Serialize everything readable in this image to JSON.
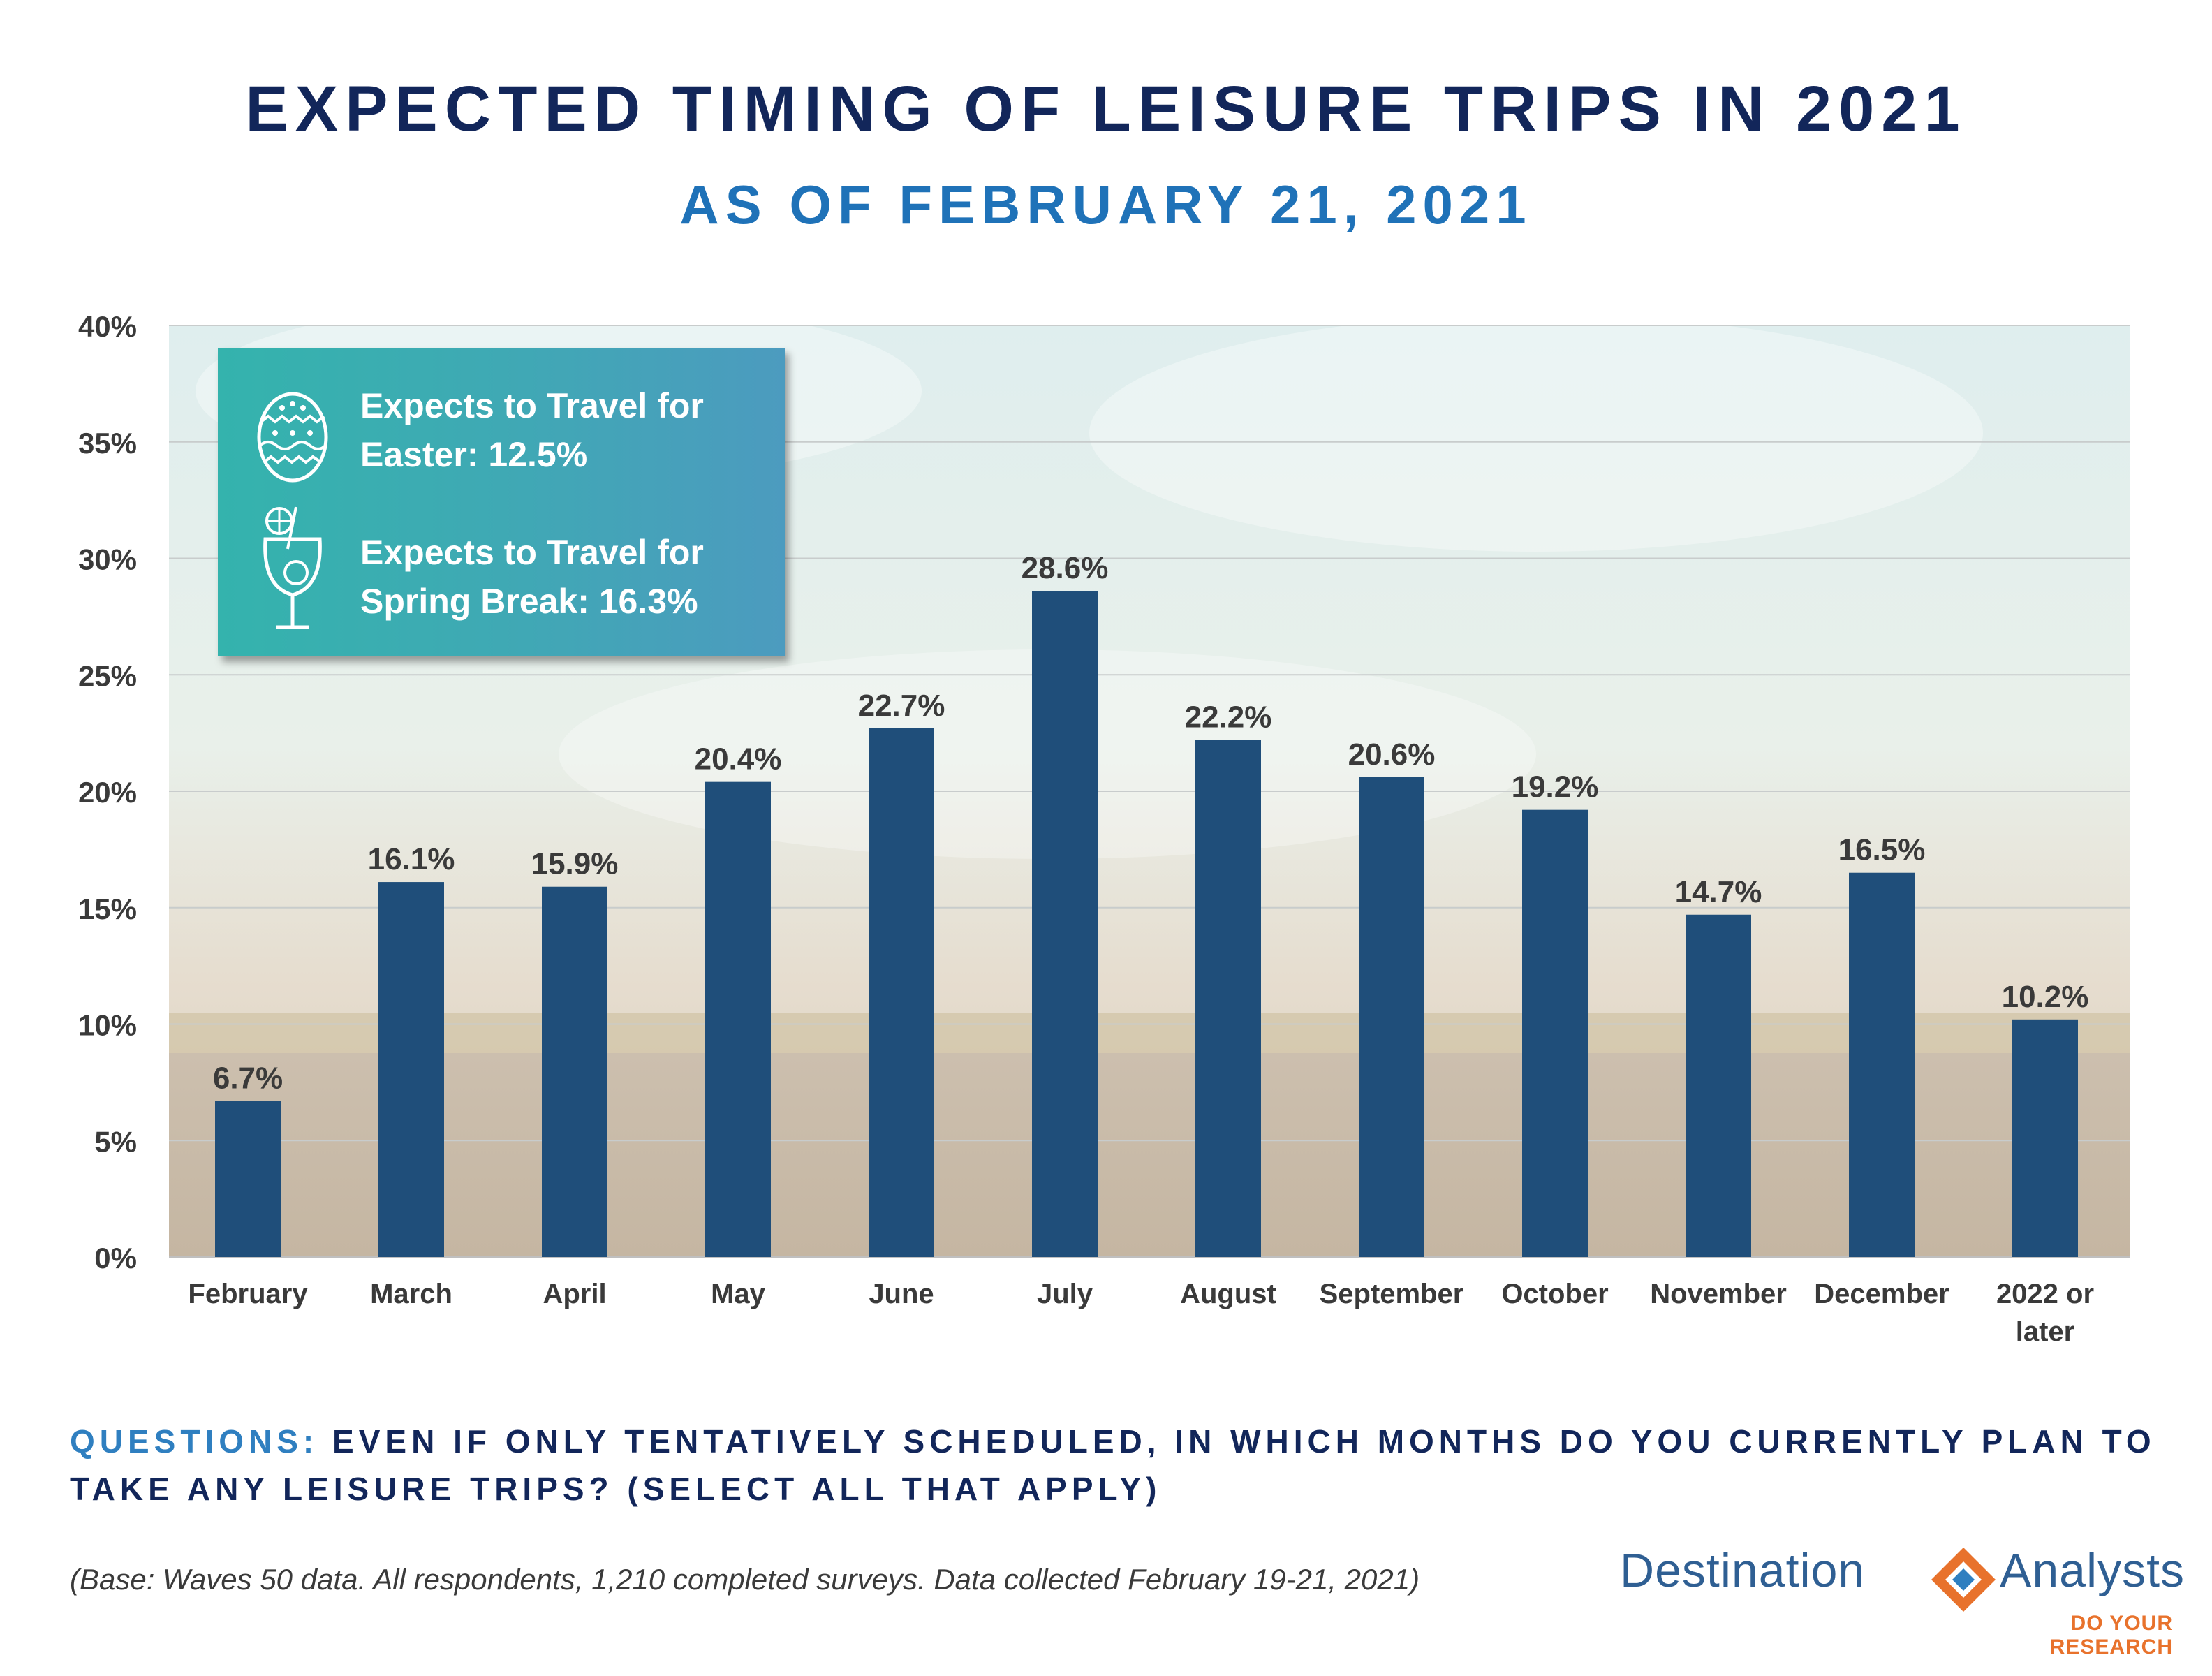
{
  "header": {
    "title": "EXPECTED TIMING OF LEISURE TRIPS IN 2021",
    "subtitle": "AS OF FEBRUARY 21, 2021"
  },
  "callout": {
    "easter_line1": "Expects to Travel for",
    "easter_line2": "Easter: 12.5%",
    "spring_line1": "Expects to Travel for",
    "spring_line2": "Spring Break: 16.3%",
    "easter_icon": "easter-egg-icon",
    "spring_icon": "cocktail-glass-icon"
  },
  "chart_data": {
    "type": "bar",
    "categories": [
      "February",
      "March",
      "April",
      "May",
      "June",
      "July",
      "August",
      "September",
      "October",
      "November",
      "December",
      "2022 or later"
    ],
    "values": [
      6.7,
      16.1,
      15.9,
      20.4,
      22.7,
      28.6,
      22.2,
      20.6,
      19.2,
      14.7,
      16.5,
      10.2
    ],
    "data_labels": [
      "6.7%",
      "16.1%",
      "15.9%",
      "20.4%",
      "22.7%",
      "28.6%",
      "22.2%",
      "20.6%",
      "19.2%",
      "14.7%",
      "16.5%",
      "10.2%"
    ],
    "y_ticks": [
      "0%",
      "5%",
      "10%",
      "15%",
      "20%",
      "25%",
      "30%",
      "35%",
      "40%"
    ],
    "ylim": [
      0,
      40
    ],
    "y_unit": "%",
    "xlabel": "",
    "ylabel": "",
    "grid": true,
    "legend": "none",
    "bar_color": "#1f4e7a"
  },
  "footer": {
    "question_label": "QUESTIONS:",
    "question_text": "EVEN IF ONLY TENTATIVELY SCHEDULED, IN WHICH MONTHS DO YOU CURRENTLY PLAN TO TAKE ANY LEISURE TRIPS? (SELECT ALL THAT APPLY)",
    "base_note": "(Base: Waves 50 data. All respondents, 1,210 completed surveys. Data collected February 19-21, 2021)"
  },
  "logo": {
    "word1": "Destination",
    "word2": "Analysts",
    "tagline": "DO YOUR RESEARCH",
    "colors": {
      "blue": "#2f5f93",
      "orange": "#e8722c"
    }
  }
}
